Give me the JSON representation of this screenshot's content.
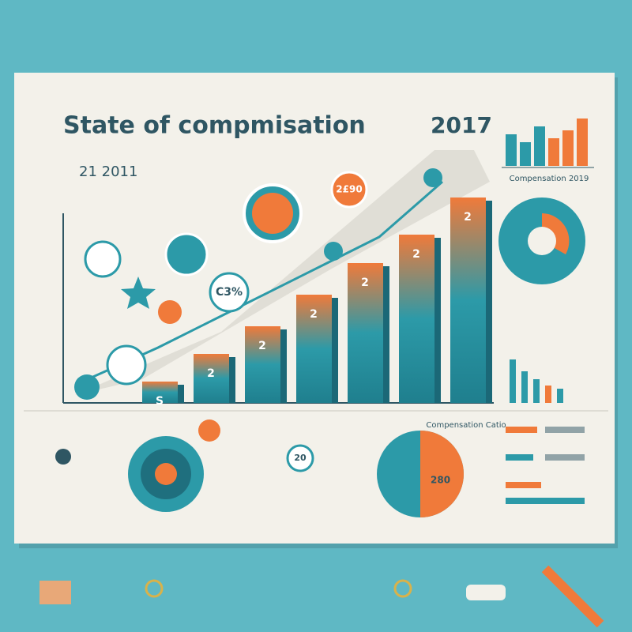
{
  "header": {
    "title": "State of compmisation",
    "year": "2017",
    "subtitle": "21 2011"
  },
  "bars": {
    "labels": [
      "S",
      "2",
      "2",
      "2",
      "2",
      "2",
      "2"
    ]
  },
  "badges": [
    "C3%",
    "2£90",
    "280",
    "20"
  ],
  "side_caption": "Compensation 2019",
  "pie_caption": "Compensation Catio"
}
